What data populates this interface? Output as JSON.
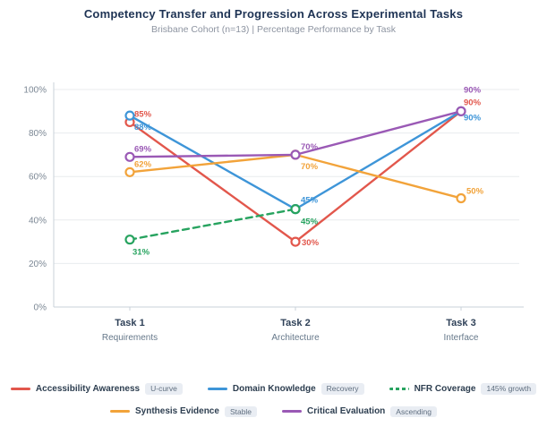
{
  "title": "Competency Transfer and Progression Across Experimental Tasks",
  "subtitle": "Brisbane Cohort (n=13) | Percentage Performance by Task",
  "chart_data": {
    "type": "line",
    "categories": [
      "Task 1",
      "Task 2",
      "Task 3"
    ],
    "category_sublabels": [
      "Requirements",
      "Architecture",
      "Interface"
    ],
    "ylim": [
      0,
      100
    ],
    "yticks": [
      "100%",
      "80%",
      "60%",
      "40%",
      "20%",
      "0%"
    ],
    "ytick_values": [
      100,
      80,
      60,
      40,
      20,
      0
    ],
    "grid": true,
    "legend_position": "bottom",
    "colors": {
      "grid": "#e8ebee",
      "axis": "#c9d2da",
      "ytick_text": "#7b8794",
      "category_text": "#2f4158",
      "sublabel_text": "#66788a"
    },
    "series": [
      {
        "name": "Accessibility Awareness",
        "badge": "U-curve",
        "color": "#e2574c",
        "dashed": false,
        "legend_row": 0,
        "values": [
          85,
          30,
          90
        ],
        "labels": [
          {
            "text": "85%",
            "dx": 5,
            "dy": -6
          },
          {
            "text": "30%",
            "dx": 7,
            "dy": 4
          },
          {
            "text": "90%",
            "dx": 3,
            "dy": -7
          }
        ]
      },
      {
        "name": "Domain Knowledge",
        "badge": "Recovery",
        "color": "#3e95d8",
        "dashed": false,
        "legend_row": 0,
        "values": [
          88,
          45,
          90
        ],
        "labels": [
          {
            "text": "88%",
            "dx": 5,
            "dy": 16
          },
          {
            "text": "45%",
            "dx": 6,
            "dy": -7
          },
          {
            "text": "90%",
            "dx": 3,
            "dy": 10
          }
        ]
      },
      {
        "name": "NFR Coverage",
        "badge": "145% growth",
        "color": "#27a35f",
        "dashed": true,
        "legend_row": 0,
        "values": [
          31,
          45,
          null
        ],
        "labels": [
          {
            "text": "31%",
            "dx": 3,
            "dy": 17
          },
          {
            "text": "45%",
            "dx": 6,
            "dy": 17
          },
          null
        ]
      },
      {
        "name": "Synthesis Evidence",
        "badge": "Stable",
        "color": "#f2a33a",
        "dashed": false,
        "legend_row": 1,
        "values": [
          62,
          70,
          50
        ],
        "labels": [
          {
            "text": "62%",
            "dx": 5,
            "dy": -6
          },
          {
            "text": "70%",
            "dx": 6,
            "dy": 16
          },
          {
            "text": "50%",
            "dx": 6,
            "dy": -5
          }
        ]
      },
      {
        "name": "Critical Evaluation",
        "badge": "Ascending",
        "color": "#9a59b5",
        "dashed": false,
        "legend_row": 1,
        "values": [
          69,
          70,
          90
        ],
        "labels": [
          {
            "text": "69%",
            "dx": 5,
            "dy": -6
          },
          {
            "text": "70%",
            "dx": 6,
            "dy": -6
          },
          {
            "text": "90%",
            "dx": 3,
            "dy": -21
          }
        ]
      }
    ]
  }
}
